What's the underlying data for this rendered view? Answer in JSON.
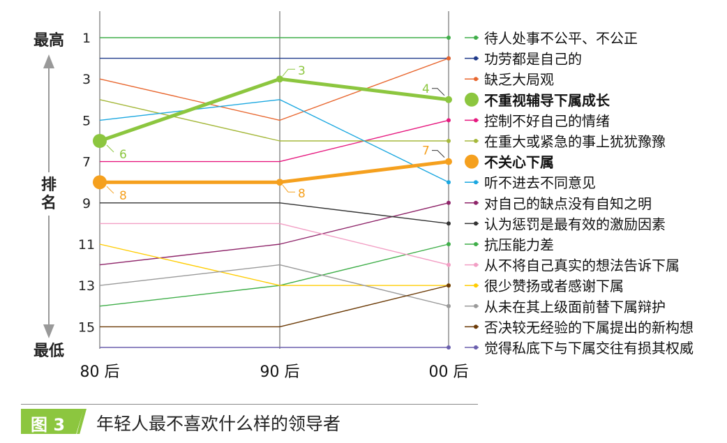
{
  "chart_data": {
    "type": "line",
    "title": "",
    "categories": [
      "80 后",
      "90 后",
      "00 后"
    ],
    "ylabel": "排名",
    "y_top_label": "最高",
    "y_bottom_label": "最低",
    "ylim": [
      1,
      16
    ],
    "y_ticks": [
      1,
      3,
      5,
      7,
      9,
      11,
      13,
      15
    ],
    "y_reversed": true,
    "legend_position": "right",
    "series": [
      {
        "name": "待人处事不公平、不公正",
        "values": [
          1,
          1,
          1
        ],
        "color": "#3fae49"
      },
      {
        "name": "功劳都是自己的",
        "values": [
          2,
          2,
          2
        ],
        "color": "#1f3a8a"
      },
      {
        "name": "缺乏大局观",
        "values": [
          3,
          5,
          2
        ],
        "color": "#e8662e"
      },
      {
        "name": "不重视辅导下属成长",
        "values": [
          6,
          3,
          4
        ],
        "color": "#8cc63f",
        "highlight": true,
        "labels": [
          "6",
          "3",
          "4"
        ]
      },
      {
        "name": "控制不好自己的情绪",
        "values": [
          7,
          7,
          5
        ],
        "color": "#e6197f"
      },
      {
        "name": "在重大或紧急的事上犹犹豫豫",
        "values": [
          4,
          6,
          6
        ],
        "color": "#a5b83b"
      },
      {
        "name": "不关心下属",
        "values": [
          8,
          8,
          7
        ],
        "color": "#f5a01e",
        "highlight": true,
        "labels": [
          "8",
          "8",
          "7"
        ]
      },
      {
        "name": "听不进去不同意见",
        "values": [
          5,
          4,
          8
        ],
        "color": "#1aa7e0"
      },
      {
        "name": "对自己的缺点没有自知之明",
        "values": [
          12,
          11,
          9
        ],
        "color": "#8e2469"
      },
      {
        "name": "认为惩罚是最有效的激励因素",
        "values": [
          9,
          9,
          10
        ],
        "color": "#333333"
      },
      {
        "name": "抗压能力差",
        "values": [
          14,
          13,
          11
        ],
        "color": "#3fae49"
      },
      {
        "name": "从不将自己真实的想法告诉下属",
        "values": [
          10,
          10,
          12
        ],
        "color": "#f29ec4"
      },
      {
        "name": "很少赞扬或者感谢下属",
        "values": [
          11,
          13,
          13
        ],
        "color": "#ffcc00"
      },
      {
        "name": "从未在其上级面前替下属辩护",
        "values": [
          13,
          12,
          14
        ],
        "color": "#999999"
      },
      {
        "name": "否决较无经验的下属提出的新构想",
        "values": [
          15,
          15,
          13
        ],
        "color": "#6b3a06"
      },
      {
        "name": "觉得私底下与下属交往有损其权威",
        "values": [
          16,
          16,
          16
        ],
        "color": "#6a5fae"
      }
    ]
  },
  "figure": {
    "tag": "图 3",
    "caption": "年轻人最不喜欢什么样的领导者"
  }
}
